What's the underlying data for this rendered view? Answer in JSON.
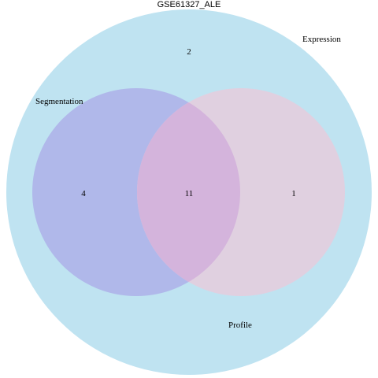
{
  "title": "GSE61327_ALE",
  "sets": [
    {
      "name": "Expression",
      "color": "#bfe3f1"
    },
    {
      "name": "Segmentation",
      "color": "#b0b8ea"
    },
    {
      "name": "Profile",
      "color": "#e0d0e0"
    }
  ],
  "regions": [
    {
      "id": "expression-only",
      "count": "2"
    },
    {
      "id": "segmentation-only",
      "count": "4"
    },
    {
      "id": "segmentation-profile",
      "count": "11"
    },
    {
      "id": "profile-only",
      "count": "1"
    }
  ],
  "overlap_color": "#d4b4dc"
}
